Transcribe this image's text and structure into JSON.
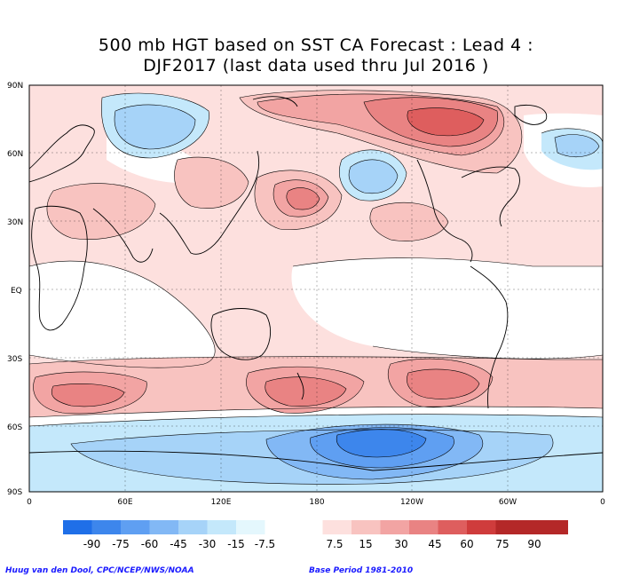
{
  "title_line1": "500 mb HGT based on SST CA Forecast : Lead 4 :",
  "title_line2": "DJF2017 (last data used thru Jul 2016 )",
  "lat_labels": [
    "90N",
    "60N",
    "30N",
    "EQ",
    "30S",
    "60S",
    "90S"
  ],
  "lon_labels": [
    "0",
    "60E",
    "120E",
    "180",
    "120W",
    "60W",
    "0"
  ],
  "colorbar": {
    "negative_labels": [
      "-90",
      "-75",
      "-60",
      "-45",
      "-30",
      "-15",
      "-7.5"
    ],
    "positive_labels": [
      "7.5",
      "15",
      "30",
      "45",
      "60",
      "75",
      "90"
    ],
    "negative_colors": [
      "#1f6fe8",
      "#3d86ec",
      "#5f9ff2",
      "#82b8f5",
      "#a6d3f8",
      "#c4e8fb",
      "#e4f7fd"
    ],
    "positive_colors": [
      "#fde0de",
      "#f8c3c0",
      "#f2a4a3",
      "#e98383",
      "#de5e5e",
      "#cf3c3c",
      "#b42828"
    ]
  },
  "credit_left": "Huug van den Dool, CPC/NCEP/NWS/NOAA",
  "credit_right": "Base Period 1981-2010"
}
